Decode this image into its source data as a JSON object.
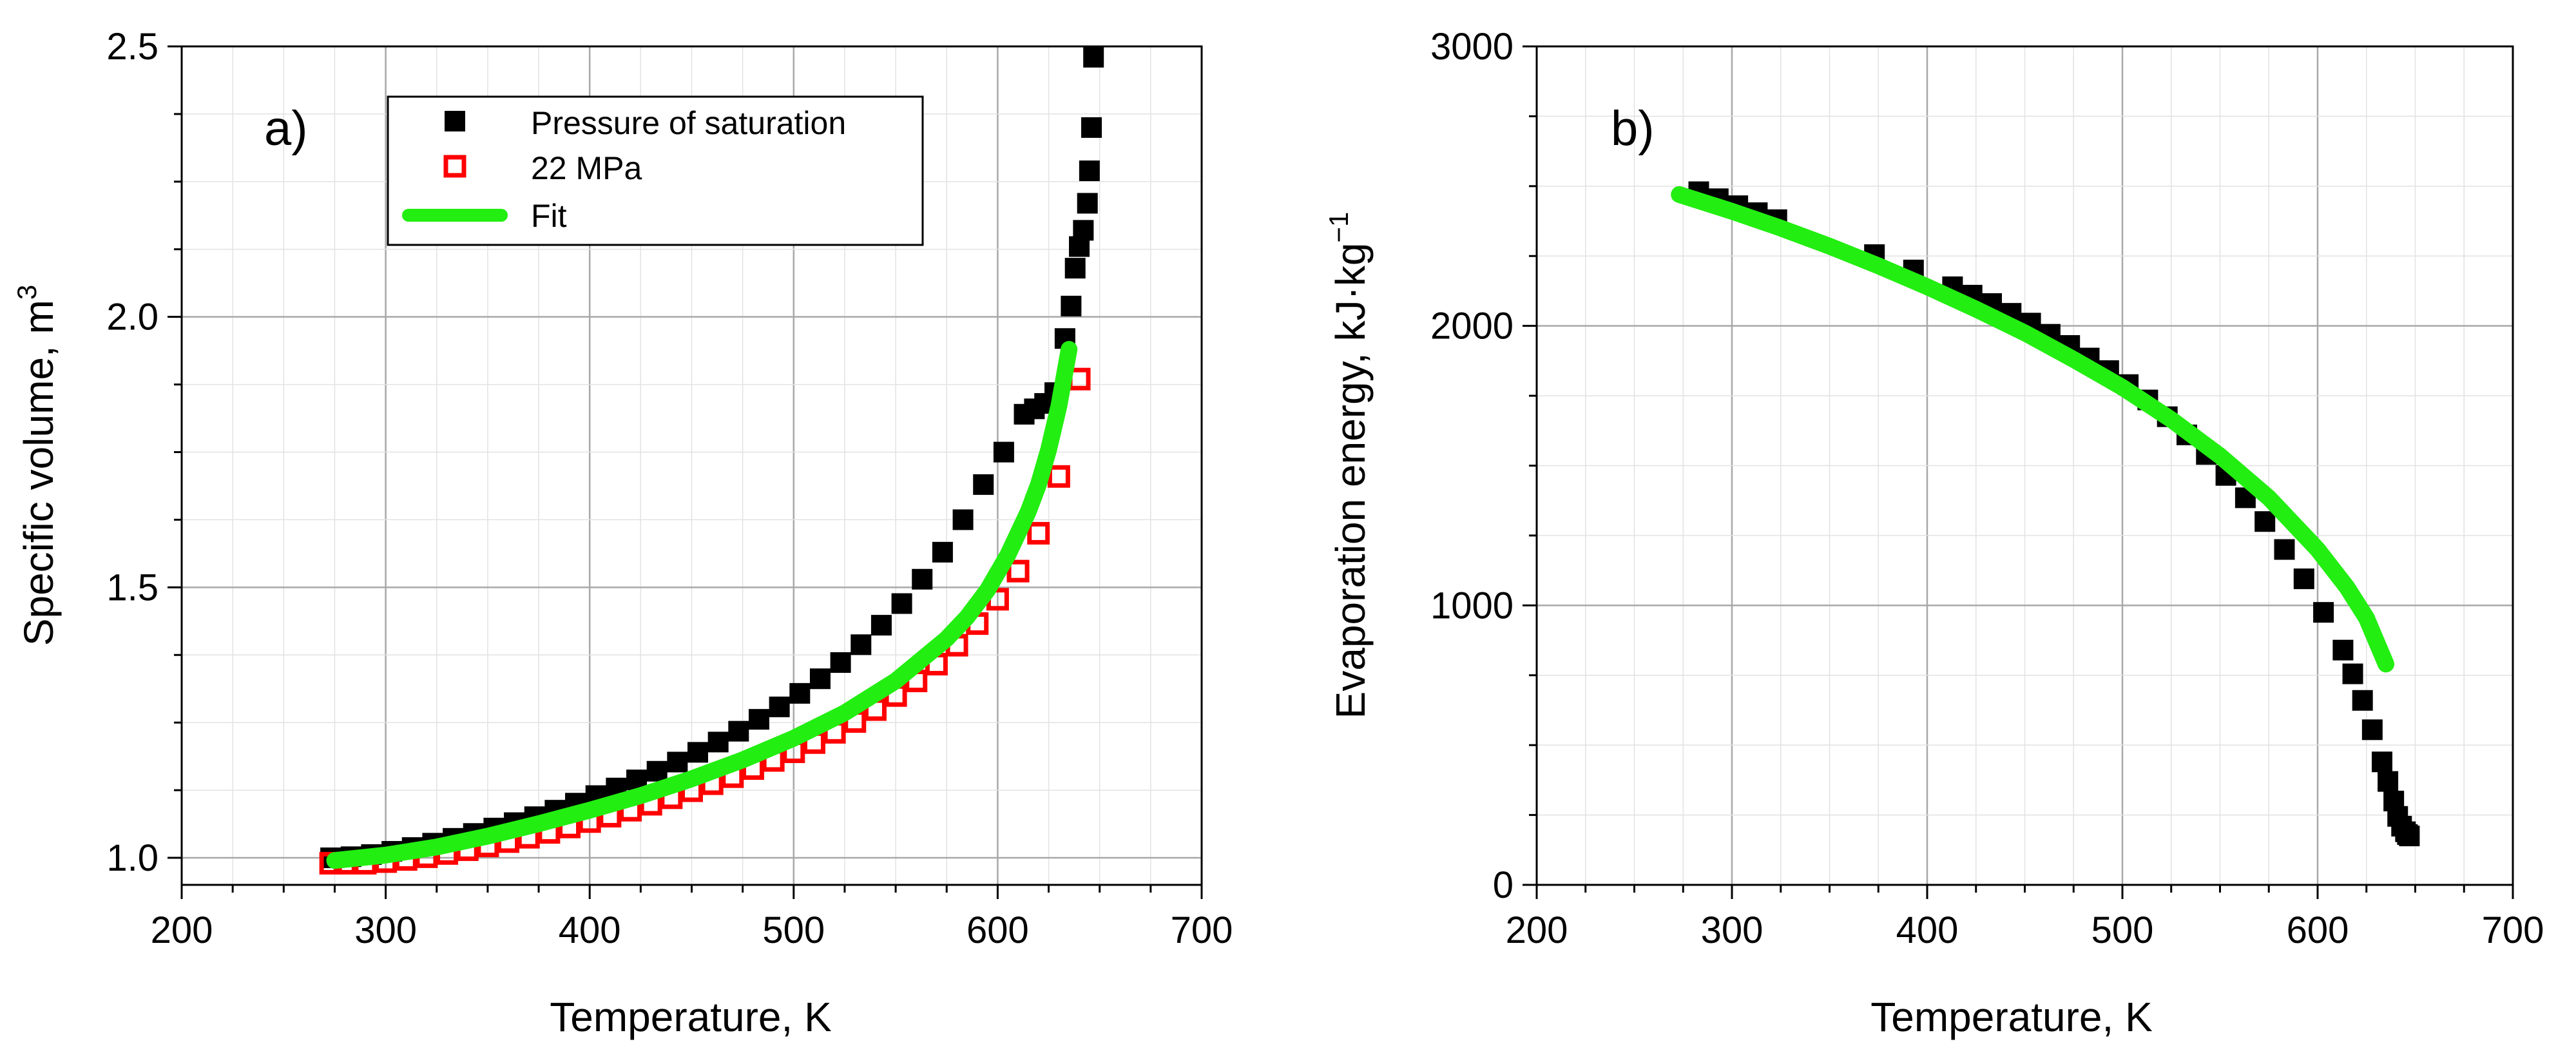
{
  "chart_data": [
    {
      "type": "scatter",
      "panel_label": "a)",
      "xlabel": "Temperature, K",
      "ylabel": "Specific volume, m",
      "ylabel_sup": "3",
      "xlim": [
        200,
        700
      ],
      "ylim": [
        0.95,
        2.5
      ],
      "x_ticks": [
        200,
        300,
        400,
        500,
        600,
        700
      ],
      "y_ticks": [
        1.0,
        1.5,
        2.0,
        2.5
      ],
      "x_tick_labels": [
        "200",
        "300",
        "400",
        "500",
        "600",
        "700"
      ],
      "y_tick_labels": [
        "1.0",
        "1.5",
        "2.0",
        "2.5"
      ],
      "grid": true,
      "legend_position": "top-center",
      "series": [
        {
          "name": "Pressure of saturation",
          "marker": "filled-square",
          "color": "#000000",
          "x": [
            273,
            283,
            293,
            303,
            313,
            323,
            333,
            343,
            353,
            363,
            373,
            383,
            393,
            403,
            413,
            423,
            433,
            443,
            453,
            463,
            473,
            483,
            493,
            503,
            513,
            523,
            533,
            543,
            553,
            563,
            573,
            583,
            593,
            603,
            613,
            618,
            623,
            628,
            633,
            636,
            638,
            640,
            642,
            644,
            645,
            646,
            647
          ],
          "y": [
            1.0,
            1.002,
            1.006,
            1.012,
            1.019,
            1.027,
            1.036,
            1.045,
            1.055,
            1.065,
            1.076,
            1.088,
            1.101,
            1.115,
            1.129,
            1.144,
            1.16,
            1.177,
            1.195,
            1.214,
            1.234,
            1.256,
            1.279,
            1.304,
            1.331,
            1.361,
            1.394,
            1.43,
            1.47,
            1.515,
            1.565,
            1.625,
            1.69,
            1.75,
            1.82,
            1.83,
            1.84,
            1.86,
            1.96,
            2.02,
            2.09,
            2.13,
            2.16,
            2.21,
            2.27,
            2.35,
            2.48
          ]
        },
        {
          "name": "22 MPa",
          "marker": "open-square",
          "color": "#ff0000",
          "x": [
            273,
            280,
            290,
            300,
            310,
            320,
            330,
            340,
            350,
            360,
            370,
            380,
            390,
            400,
            410,
            420,
            430,
            440,
            450,
            460,
            470,
            480,
            490,
            500,
            510,
            520,
            530,
            540,
            550,
            560,
            570,
            580,
            590,
            600,
            610,
            620,
            630,
            640
          ],
          "y": [
            0.99,
            0.99,
            0.99,
            0.993,
            0.997,
            1.002,
            1.008,
            1.015,
            1.022,
            1.03,
            1.038,
            1.047,
            1.057,
            1.067,
            1.077,
            1.088,
            1.099,
            1.111,
            1.124,
            1.137,
            1.15,
            1.165,
            1.18,
            1.196,
            1.213,
            1.232,
            1.252,
            1.274,
            1.3,
            1.327,
            1.358,
            1.393,
            1.433,
            1.478,
            1.53,
            1.6,
            1.705,
            1.885
          ]
        },
        {
          "name": "Fit",
          "marker": "line",
          "color": "#22ee11",
          "x": [
            275,
            300,
            325,
            350,
            375,
            400,
            425,
            450,
            475,
            500,
            525,
            550,
            575,
            585,
            595,
            605,
            615,
            620,
            625,
            630,
            635
          ],
          "y": [
            0.995,
            1.005,
            1.02,
            1.04,
            1.063,
            1.088,
            1.115,
            1.146,
            1.181,
            1.221,
            1.268,
            1.327,
            1.405,
            1.445,
            1.495,
            1.56,
            1.64,
            1.69,
            1.755,
            1.835,
            1.94
          ]
        }
      ]
    },
    {
      "type": "scatter",
      "panel_label": "b)",
      "xlabel": "Temperature, K",
      "ylabel": "Evaporation energy, kJ·kg",
      "ylabel_sup": "−1",
      "xlim": [
        200,
        700
      ],
      "ylim": [
        0,
        3000
      ],
      "x_ticks": [
        200,
        300,
        400,
        500,
        600,
        700
      ],
      "y_ticks": [
        0,
        1000,
        2000,
        3000
      ],
      "x_tick_labels": [
        "200",
        "300",
        "400",
        "500",
        "600",
        "700"
      ],
      "y_tick_labels": [
        "0",
        "1000",
        "2000",
        "3000"
      ],
      "grid": true,
      "series": [
        {
          "name": "Pressure of saturation",
          "marker": "filled-square",
          "color": "#000000",
          "x": [
            283,
            293,
            303,
            313,
            323,
            373,
            393,
            413,
            423,
            433,
            443,
            453,
            463,
            473,
            483,
            493,
            503,
            513,
            523,
            533,
            543,
            553,
            563,
            573,
            583,
            593,
            603,
            613,
            618,
            623,
            628,
            633,
            636,
            639,
            641,
            643,
            645,
            646,
            647
          ],
          "y": [
            2480,
            2455,
            2430,
            2405,
            2380,
            2255,
            2200,
            2140,
            2110,
            2080,
            2045,
            2010,
            1970,
            1930,
            1885,
            1840,
            1790,
            1735,
            1675,
            1610,
            1540,
            1465,
            1385,
            1300,
            1200,
            1095,
            975,
            840,
            755,
            660,
            555,
            440,
            370,
            300,
            245,
            210,
            190,
            180,
            175
          ]
        },
        {
          "name": "Fit",
          "marker": "line",
          "color": "#22ee11",
          "x": [
            273,
            300,
            325,
            350,
            375,
            400,
            425,
            450,
            475,
            500,
            525,
            550,
            575,
            600,
            615,
            625,
            635
          ],
          "y": [
            2470,
            2410,
            2350,
            2285,
            2215,
            2140,
            2060,
            1975,
            1880,
            1780,
            1665,
            1535,
            1385,
            1200,
            1065,
            955,
            790
          ]
        }
      ]
    }
  ]
}
